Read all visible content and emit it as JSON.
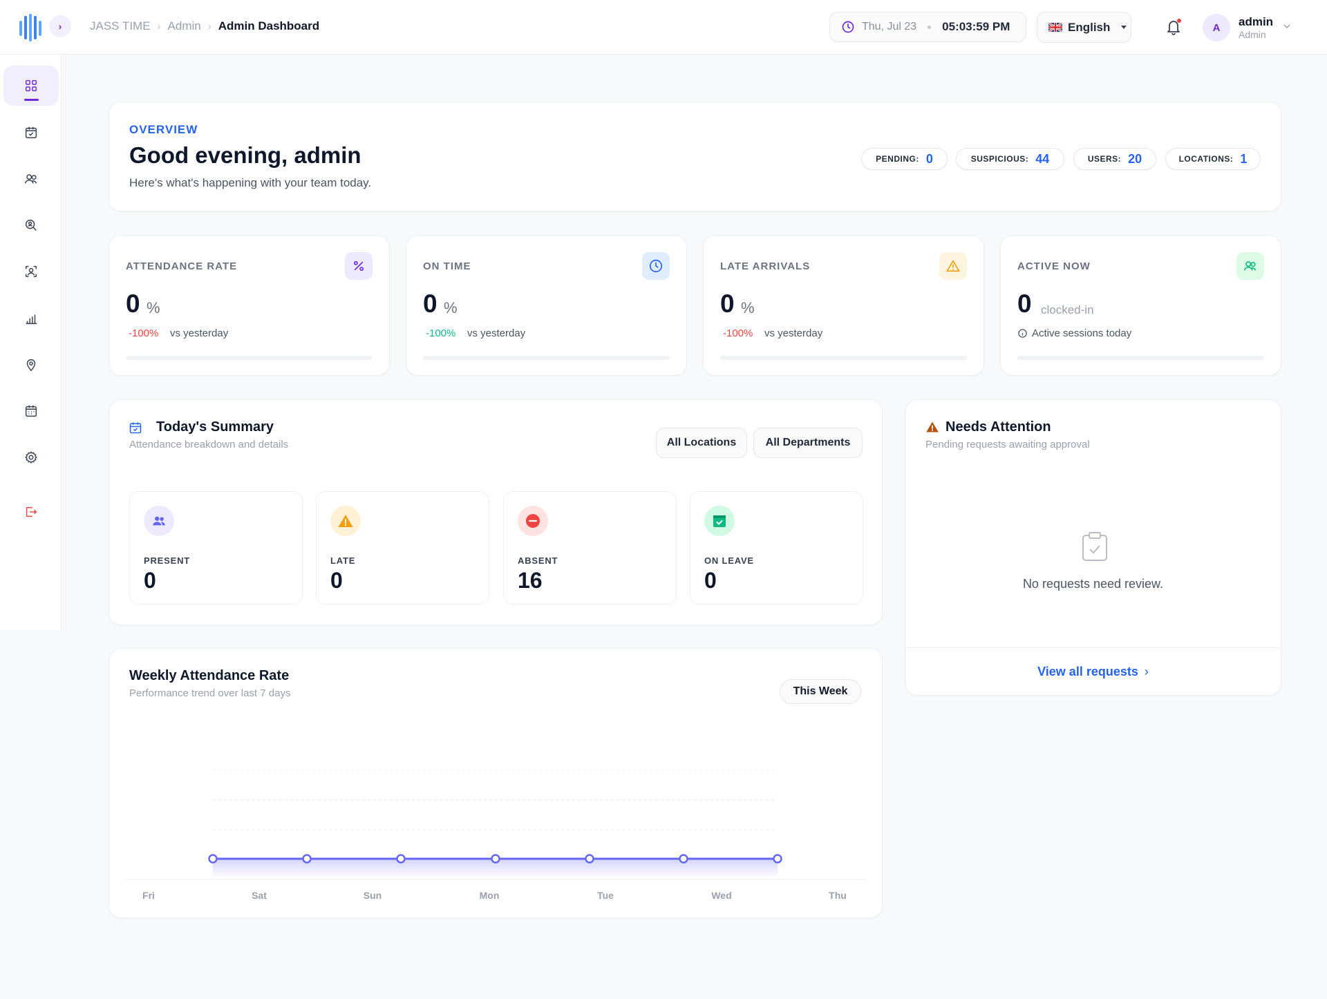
{
  "header": {
    "breadcrumb": [
      "JASS TIME",
      "Admin",
      "Admin Dashboard"
    ],
    "date": "Thu, Jul 23",
    "time": "05:03:59 PM",
    "language": "English",
    "user": {
      "initial": "A",
      "name": "admin",
      "role": "Admin"
    }
  },
  "sidebar": {
    "items": [
      {
        "icon": "dashboard-grid-icon",
        "active": true
      },
      {
        "icon": "calendar-check-icon"
      },
      {
        "icon": "users-icon"
      },
      {
        "icon": "search-user-icon"
      },
      {
        "icon": "face-scan-icon"
      },
      {
        "icon": "bar-chart-icon"
      },
      {
        "icon": "location-pin-icon"
      },
      {
        "icon": "calendar-grid-icon"
      },
      {
        "icon": "gear-icon"
      },
      {
        "icon": "logout-icon"
      }
    ]
  },
  "overview": {
    "tag": "OVERVIEW",
    "greeting": "Good evening, admin",
    "subtitle": "Here's what's happening with your team today.",
    "pills": [
      {
        "label": "PENDING:",
        "value": "0"
      },
      {
        "label": "SUSPICIOUS:",
        "value": "44"
      },
      {
        "label": "USERS:",
        "value": "20"
      },
      {
        "label": "LOCATIONS:",
        "value": "1"
      }
    ]
  },
  "stats": [
    {
      "title": "ATTENDANCE RATE",
      "value": "0",
      "unit": "%",
      "delta": "-100%",
      "delta_color": "#ef4444",
      "vs": "vs yesterday",
      "icon": "percent-icon",
      "progress": 0
    },
    {
      "title": "ON TIME",
      "value": "0",
      "unit": "%",
      "delta": "-100%",
      "delta_color": "#10b981",
      "vs": "vs yesterday",
      "icon": "clock-icon",
      "progress": 0
    },
    {
      "title": "LATE ARRIVALS",
      "value": "0",
      "unit": "%",
      "delta": "-100%",
      "delta_color": "#ef4444",
      "vs": "vs yesterday",
      "icon": "warning-icon",
      "progress": 0
    },
    {
      "title": "ACTIVE NOW",
      "value": "0",
      "unit": "clocked-in",
      "info": "Active sessions today",
      "icon": "users-icon",
      "progress": 0
    }
  ],
  "summary": {
    "title": "Today's Summary",
    "subtitle": "Attendance breakdown and details",
    "filters": [
      "All Locations",
      "All Departments"
    ],
    "items": [
      {
        "label": "PRESENT",
        "value": "0",
        "icon": "users-icon"
      },
      {
        "label": "LATE",
        "value": "0",
        "icon": "warning-icon"
      },
      {
        "label": "ABSENT",
        "value": "16",
        "icon": "minus-circle-icon"
      },
      {
        "label": "ON LEAVE",
        "value": "0",
        "icon": "calendar-check-icon"
      }
    ]
  },
  "attention": {
    "title": "Needs Attention",
    "subtitle": "Pending requests awaiting approval",
    "empty": "No requests need review.",
    "link": "View all requests"
  },
  "weekly": {
    "title": "Weekly Attendance Rate",
    "subtitle": "Performance trend over last 7 days",
    "button": "This Week"
  },
  "chart_data": {
    "type": "area",
    "categories": [
      "Fri",
      "Sat",
      "Sun",
      "Mon",
      "Tue",
      "Wed",
      "Thu"
    ],
    "series": [
      {
        "values": [
          0,
          0,
          0,
          0,
          0,
          0,
          0
        ]
      }
    ],
    "title": "Weekly Attendance Rate",
    "grid": "horizontal dashed",
    "color": "#6366f1"
  },
  "colors": {
    "accent": "#6d28d9",
    "link": "#2563eb",
    "danger": "#ef4444",
    "success": "#10b981",
    "warning": "#f59e0b"
  }
}
